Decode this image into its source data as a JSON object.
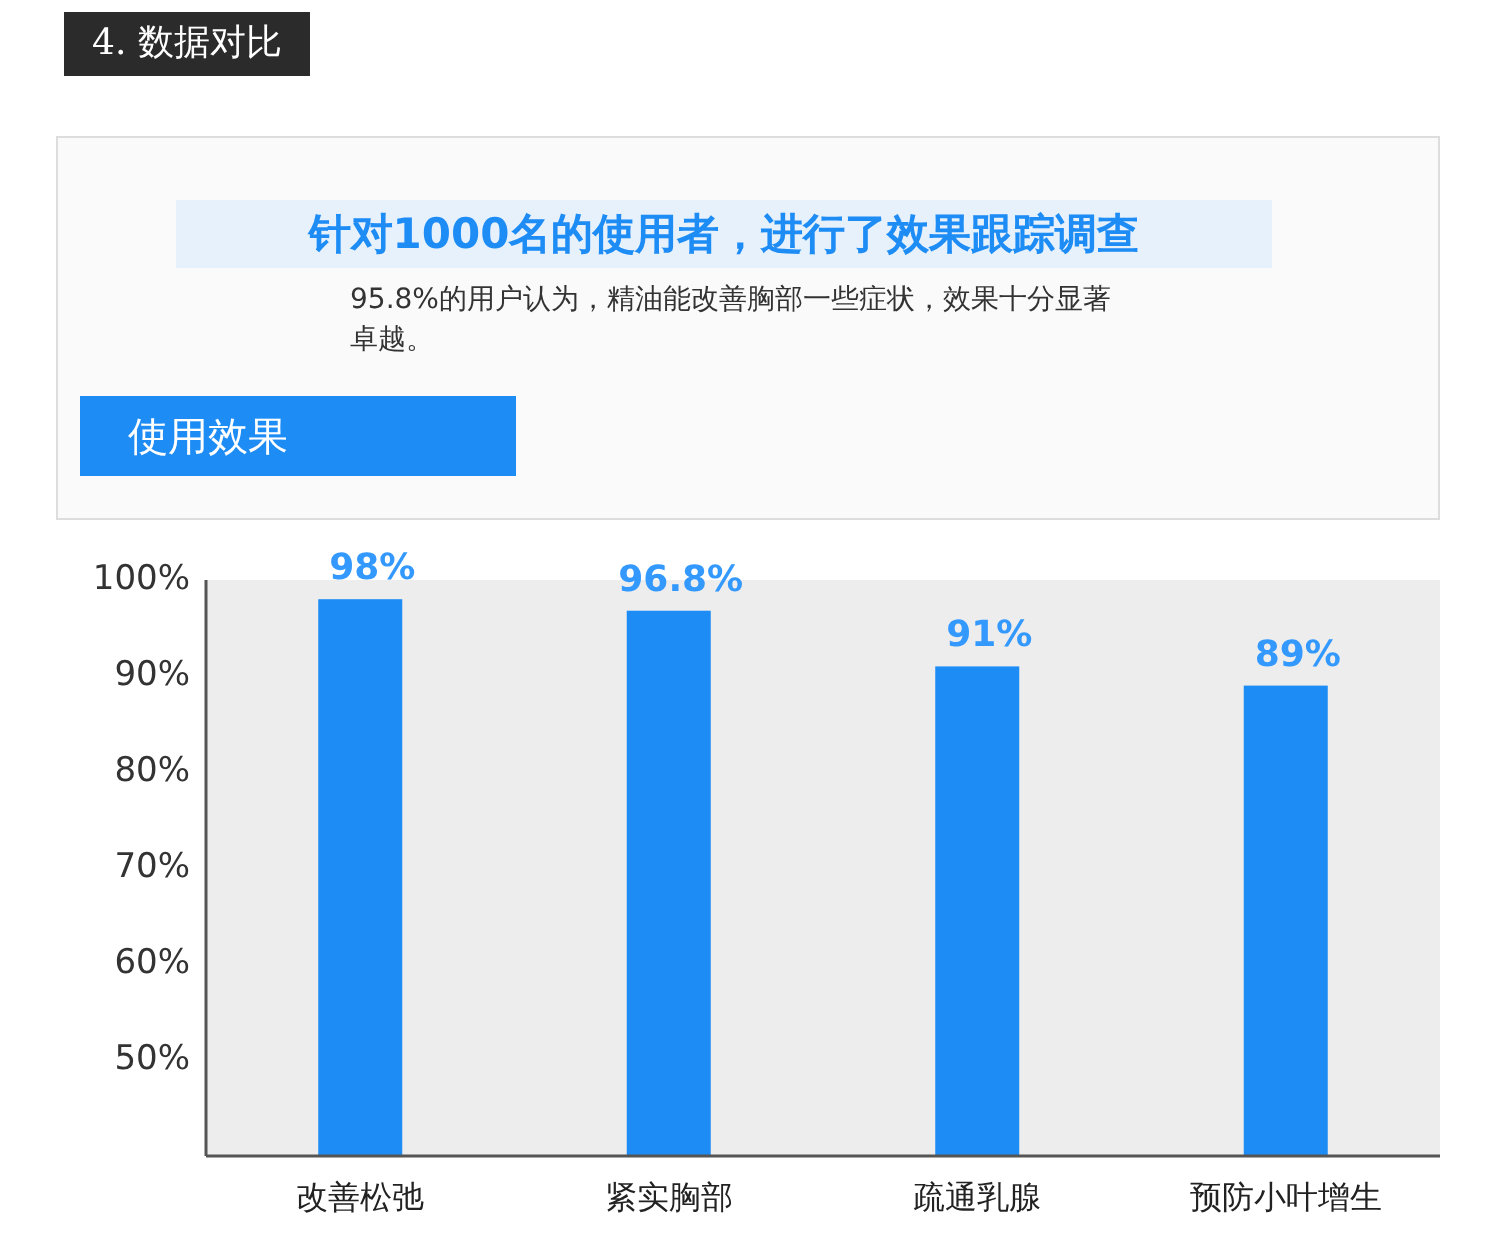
{
  "chart_data": {
    "type": "bar",
    "title": "针对1000名的使用者，进行了效果跟踪调查",
    "subtitle": "95.8%的用户认为，精油能改善胸部一些症状，效果十分显著卓越。",
    "annotations": [
      "4. 数据对比",
      "使用效果"
    ],
    "categories": [
      "改善松弛",
      "紧实胸部",
      "疏通乳腺",
      "预防小叶增生"
    ],
    "values": [
      98,
      96.8,
      91,
      89
    ],
    "color": "#1e8cf5",
    "value_labels": [
      "98%",
      "96.8%",
      "91%",
      "89%"
    ],
    "ylim": [
      40,
      100
    ],
    "yticks": [
      {
        "value": 50,
        "label": "50%"
      },
      {
        "value": 60,
        "label": "60%"
      },
      {
        "value": 70,
        "label": "70%"
      },
      {
        "value": 80,
        "label": "80%"
      },
      {
        "value": 90,
        "label": "90%"
      },
      {
        "value": 100,
        "label": "100%"
      }
    ]
  }
}
